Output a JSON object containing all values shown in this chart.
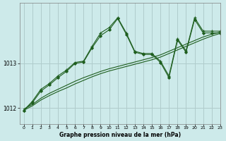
{
  "title": "Graphe pression niveau de la mer (hPa)",
  "background_color": "#cdeaea",
  "grid_color": "#b0cccc",
  "line_color": "#1e5e1e",
  "xlim": [
    -0.5,
    23
  ],
  "ylim": [
    1011.65,
    1014.35
  ],
  "xticks": [
    0,
    1,
    2,
    3,
    4,
    5,
    6,
    7,
    8,
    9,
    10,
    11,
    12,
    13,
    14,
    15,
    16,
    17,
    18,
    19,
    20,
    21,
    22,
    23
  ],
  "ytick_positions": [
    1012,
    1013
  ],
  "ytick_labels": [
    "1012",
    "1013"
  ],
  "series1_x": [
    0,
    1,
    2,
    3,
    4,
    5,
    6,
    7,
    8,
    9,
    10,
    11,
    12,
    13,
    14,
    15,
    16,
    17,
    18,
    19,
    20,
    21,
    22,
    23
  ],
  "series1_y": [
    1011.95,
    1012.05,
    1012.18,
    1012.28,
    1012.37,
    1012.45,
    1012.54,
    1012.62,
    1012.7,
    1012.77,
    1012.83,
    1012.88,
    1012.93,
    1012.98,
    1013.03,
    1013.08,
    1013.14,
    1013.22,
    1013.3,
    1013.38,
    1013.46,
    1013.54,
    1013.61,
    1013.67
  ],
  "series2_x": [
    0,
    1,
    2,
    3,
    4,
    5,
    6,
    7,
    8,
    9,
    10,
    11,
    12,
    13,
    14,
    15,
    16,
    17,
    18,
    19,
    20,
    21,
    22,
    23
  ],
  "series2_y": [
    1011.98,
    1012.08,
    1012.22,
    1012.33,
    1012.42,
    1012.51,
    1012.6,
    1012.68,
    1012.75,
    1012.82,
    1012.88,
    1012.93,
    1012.98,
    1013.03,
    1013.08,
    1013.13,
    1013.19,
    1013.27,
    1013.35,
    1013.43,
    1013.51,
    1013.59,
    1013.65,
    1013.7
  ],
  "series3_x": [
    0,
    1,
    2,
    3,
    4,
    5,
    6,
    7,
    8,
    9,
    10,
    11,
    12,
    13,
    14,
    15,
    16,
    17,
    18,
    19,
    20,
    21,
    22,
    23
  ],
  "series3_y": [
    1011.95,
    1012.15,
    1012.42,
    1012.55,
    1012.72,
    1012.85,
    1013.02,
    1013.05,
    1013.38,
    1013.68,
    1013.8,
    1014.02,
    1013.68,
    1013.27,
    1013.22,
    1013.22,
    1013.05,
    1012.72,
    1013.55,
    1013.28,
    1014.02,
    1013.72,
    1013.72,
    1013.72
  ],
  "series4_x": [
    0,
    1,
    2,
    3,
    4,
    5,
    6,
    7,
    8,
    9,
    10,
    11,
    12,
    13,
    14,
    15,
    16,
    17,
    18,
    19,
    20,
    21,
    22,
    23
  ],
  "series4_y": [
    1011.95,
    1012.12,
    1012.38,
    1012.52,
    1012.68,
    1012.82,
    1013.0,
    1013.03,
    1013.35,
    1013.62,
    1013.75,
    1014.0,
    1013.65,
    1013.25,
    1013.2,
    1013.2,
    1013.02,
    1012.68,
    1013.52,
    1013.25,
    1013.98,
    1013.68,
    1013.68,
    1013.68
  ]
}
